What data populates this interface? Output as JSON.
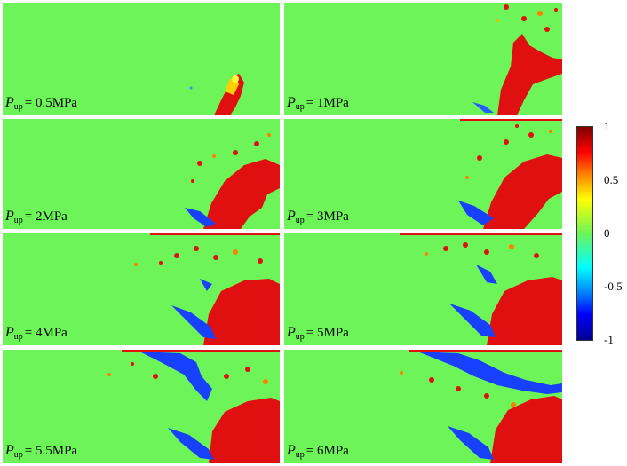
{
  "panels": [
    {
      "symbol": "P",
      "subscript": "up",
      "value": "= 0.5MPa"
    },
    {
      "symbol": "P",
      "subscript": "up",
      "value": "= 1MPa"
    },
    {
      "symbol": "P",
      "subscript": "up",
      "value": "= 2MPa"
    },
    {
      "symbol": "P",
      "subscript": "up",
      "value": "= 3MPa"
    },
    {
      "symbol": "P",
      "subscript": "up",
      "value": "= 4MPa"
    },
    {
      "symbol": "P",
      "subscript": "up",
      "value": "= 5MPa"
    },
    {
      "symbol": "P",
      "subscript": "up",
      "value": "= 5.5MPa"
    },
    {
      "symbol": "P",
      "subscript": "up",
      "value": "= 6MPa"
    }
  ],
  "colorbar": {
    "ticks": [
      "1",
      "0.5",
      "0",
      "-0.5",
      "-1"
    ],
    "colors": {
      "max": "#7f0000",
      "high": "#ff0000",
      "mid": "#6cf458",
      "low": "#0000ff",
      "min": "#00008f"
    }
  }
}
